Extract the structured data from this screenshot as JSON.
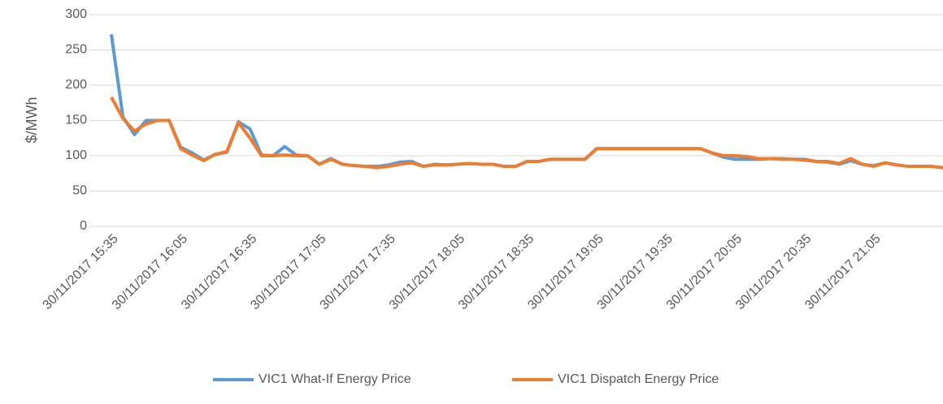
{
  "chart_data": {
    "type": "line",
    "y_label": "$/MWh",
    "categories": [
      "30/11/2017 15:35",
      null,
      null,
      null,
      null,
      null,
      "30/11/2017 16:05",
      null,
      null,
      null,
      null,
      null,
      "30/11/2017 16:35",
      null,
      null,
      null,
      null,
      null,
      "30/11/2017 17:05",
      null,
      null,
      null,
      null,
      null,
      "30/11/2017 17:35",
      null,
      null,
      null,
      null,
      null,
      "30/11/2017 18:05",
      null,
      null,
      null,
      null,
      null,
      "30/11/2017 18:35",
      null,
      null,
      null,
      null,
      null,
      "30/11/2017 19:05",
      null,
      null,
      null,
      null,
      null,
      "30/11/2017 19:35",
      null,
      null,
      null,
      null,
      null,
      "30/11/2017 20:05",
      null,
      null,
      null,
      null,
      null,
      "30/11/2017 20:35",
      null,
      null,
      null,
      null,
      null,
      "30/11/2017 21:05",
      null,
      null,
      null,
      null,
      null,
      null
    ],
    "series": [
      {
        "name": "VIC1 What-If Energy Price",
        "color": "#5b9bd5",
        "values": [
          272,
          155,
          130,
          150,
          150,
          150,
          112,
          104,
          94,
          102,
          105,
          148,
          138,
          101,
          100,
          113,
          101,
          100,
          88,
          96,
          88,
          86,
          85,
          85,
          87,
          91,
          92,
          85,
          88,
          87,
          88,
          89,
          88,
          88,
          85,
          85,
          92,
          92,
          95,
          95,
          95,
          95,
          110,
          110,
          110,
          110,
          110,
          110,
          110,
          110,
          110,
          110,
          104,
          98,
          95,
          95,
          95,
          96,
          96,
          95,
          95,
          92,
          91,
          88,
          93,
          88,
          86,
          90,
          87,
          85,
          85,
          85,
          83
        ]
      },
      {
        "name": "VIC1 Dispatch Energy Price",
        "color": "#ed7d31",
        "values": [
          183,
          153,
          135,
          145,
          150,
          150,
          110,
          101,
          93,
          102,
          106,
          147,
          125,
          100,
          100,
          101,
          100,
          100,
          88,
          95,
          88,
          86,
          85,
          83,
          85,
          88,
          90,
          85,
          87,
          87,
          88,
          89,
          88,
          88,
          85,
          85,
          92,
          92,
          95,
          95,
          95,
          95,
          110,
          110,
          110,
          110,
          110,
          110,
          110,
          110,
          110,
          110,
          104,
          100,
          100,
          99,
          96,
          96,
          95,
          95,
          94,
          92,
          92,
          89,
          96,
          88,
          85,
          90,
          87,
          85,
          85,
          85,
          83
        ]
      }
    ],
    "ylim": [
      0,
      300
    ],
    "yticks": [
      0,
      50,
      100,
      150,
      200,
      250,
      300
    ],
    "grid": true,
    "legend": "bottom"
  }
}
